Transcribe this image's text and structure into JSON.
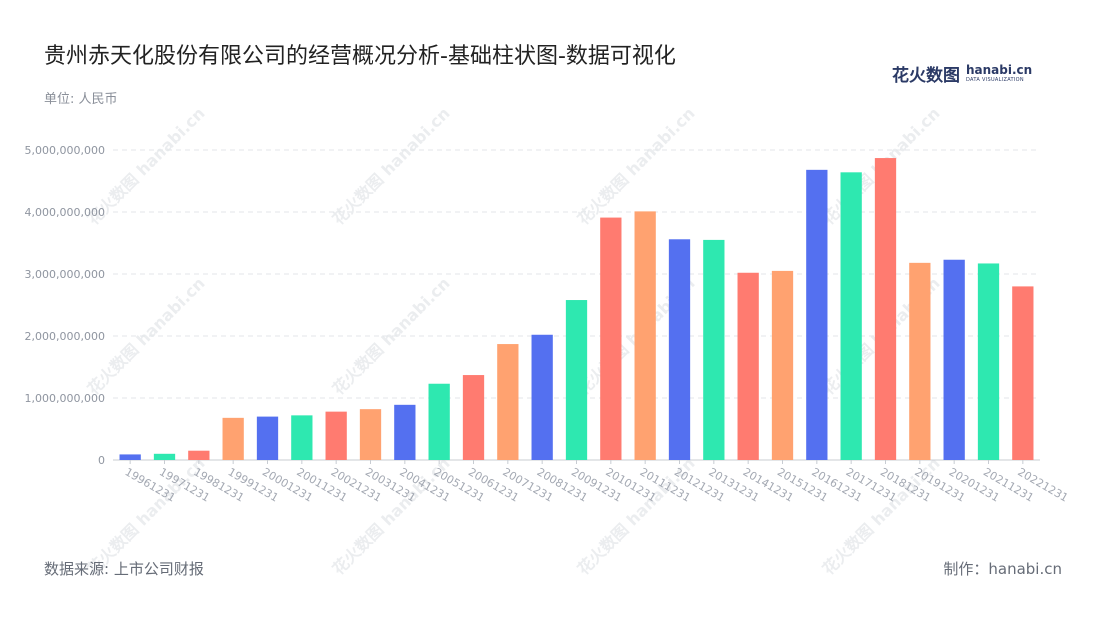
{
  "header": {
    "title": "贵州赤天化股份有限公司的经营概况分析-基础柱状图-数据可视化",
    "unit": "单位: 人民币"
  },
  "logo": {
    "cn": "花火数图",
    "en": "hanabi.cn",
    "sub": "DATA VISUALIZATION"
  },
  "footer": {
    "source": "数据来源: 上市公司财报",
    "maker": "制作：hanabi.cn"
  },
  "watermark": {
    "text": "花火数图 hanabi.cn"
  },
  "colors": {
    "palette": [
      "#5470f0",
      "#2ee8b0",
      "#ff7b70",
      "#ffa270"
    ],
    "grid": "#e3e6ea",
    "axis": "#c8ccd2"
  },
  "chart_data": {
    "type": "bar",
    "title": "贵州赤天化股份有限公司的经营概况分析-基础柱状图-数据可视化",
    "xlabel": "",
    "ylabel": "单位: 人民币",
    "ylim": [
      0,
      5000000000
    ],
    "yticks": [
      0,
      1000000000,
      2000000000,
      3000000000,
      4000000000,
      5000000000
    ],
    "ytick_labels": [
      "0",
      "1,000,000,000",
      "2,000,000,000",
      "3,000,000,000",
      "4,000,000,000",
      "5,000,000,000"
    ],
    "categories": [
      "19961231",
      "19971231",
      "19981231",
      "19991231",
      "20001231",
      "20011231",
      "20021231",
      "20031231",
      "20041231",
      "20051231",
      "20061231",
      "20071231",
      "20081231",
      "20091231",
      "20101231",
      "20111231",
      "20121231",
      "20131231",
      "20141231",
      "20151231",
      "20161231",
      "20171231",
      "20181231",
      "20191231",
      "20201231",
      "20211231",
      "20221231"
    ],
    "values": [
      90000000,
      100000000,
      150000000,
      680000000,
      700000000,
      720000000,
      780000000,
      820000000,
      890000000,
      1230000000,
      1370000000,
      1870000000,
      2020000000,
      2580000000,
      3910000000,
      4010000000,
      3560000000,
      3550000000,
      3020000000,
      3050000000,
      4680000000,
      4640000000,
      4870000000,
      3180000000,
      3230000000,
      3170000000,
      2800000000
    ],
    "grid": true,
    "legend": "none"
  }
}
